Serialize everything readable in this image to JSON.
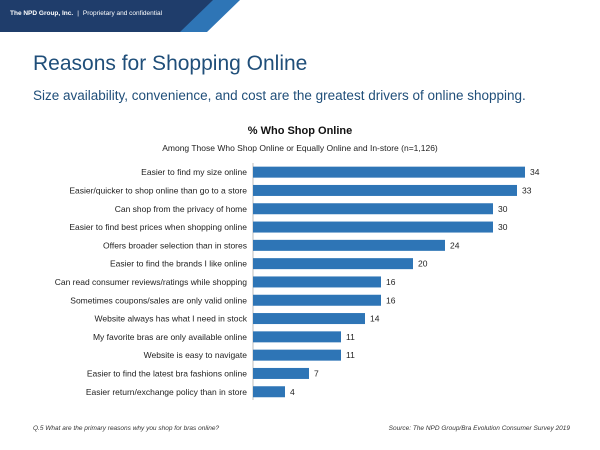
{
  "header": {
    "company": "The NPD Group, Inc.",
    "separator": "|",
    "confidential": "Proprietary and confidential"
  },
  "slide": {
    "title": "Reasons for Shopping Online",
    "subtitle": "Size availability, convenience, and cost are the greatest drivers of online shopping."
  },
  "colors": {
    "bar": "#2e75b6",
    "title": "#1f4e79",
    "header_band": "#1f3d6b"
  },
  "footer": {
    "question": "Q.5 What are the primary reasons why you shop for bras online?",
    "source": "Source: The NPD Group/Bra Evolution Consumer Survey 2019"
  },
  "chart_data": {
    "type": "bar",
    "orientation": "horizontal",
    "title": "% Who Shop Online",
    "subtitle": "Among Those Who Shop Online or Equally Online and In-store (n=1,126)",
    "categories": [
      "Easier to find my size online",
      "Easier/quicker to shop online than go to a store",
      "Can shop from the privacy of home",
      "Easier to find best prices when shopping online",
      "Offers broader selection than in stores",
      "Easier to find the brands I like online",
      "Can read consumer reviews/ratings while shopping",
      "Sometimes coupons/sales are only valid online",
      "Website always has what I need in stock",
      "My favorite bras are only available online",
      "Website is easy to navigate",
      "Easier to find the latest bra fashions online",
      "Easier return/exchange policy than in store"
    ],
    "values": [
      34,
      33,
      30,
      30,
      24,
      20,
      16,
      16,
      14,
      11,
      11,
      7,
      4
    ],
    "xlim": [
      0,
      34
    ],
    "grid": false,
    "legend": "none"
  }
}
